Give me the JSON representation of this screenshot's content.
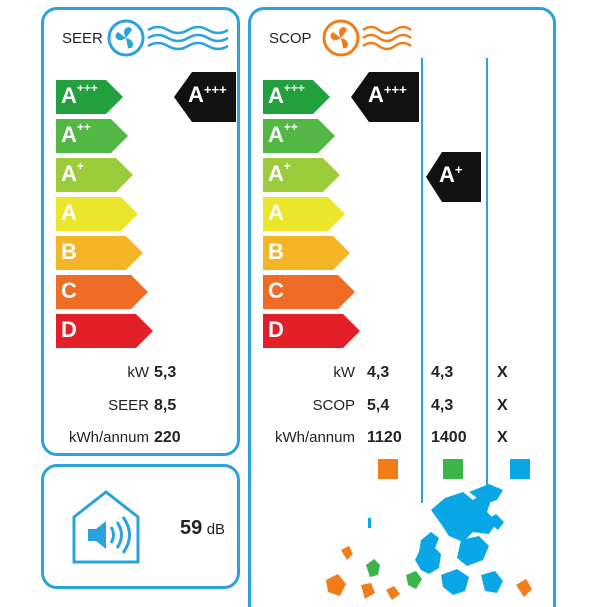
{
  "colors": {
    "border": "#2aa3dc",
    "cool": "#2aa3dc",
    "heat": "#f07d1a",
    "map_blue": "#0aa7e6",
    "map_green": "#3ab54a",
    "map_orange": "#f07d1a"
  },
  "seer": {
    "title": "SEER",
    "icon": "fan-cold-icon",
    "classes": [
      {
        "letter": "A",
        "plus": "+++",
        "color": "#21a03d"
      },
      {
        "letter": "A",
        "plus": "++",
        "color": "#53b743"
      },
      {
        "letter": "A",
        "plus": "+",
        "color": "#9ccb3b"
      },
      {
        "letter": "A",
        "plus": "",
        "color": "#ebe52b"
      },
      {
        "letter": "B",
        "plus": "",
        "color": "#f4b526"
      },
      {
        "letter": "C",
        "plus": "",
        "color": "#ee6c25"
      },
      {
        "letter": "D",
        "plus": "",
        "color": "#e32027"
      }
    ],
    "rating": {
      "letter": "A",
      "plus": "+++"
    },
    "rows": [
      {
        "label": "kW",
        "value": "5,3"
      },
      {
        "label": "SEER",
        "value": "8,5"
      },
      {
        "label": "kWh/annum",
        "value": "220"
      }
    ]
  },
  "scop": {
    "title": "SCOP",
    "icon": "fan-heat-icon",
    "ratings": [
      {
        "letter": "A",
        "plus": "+++"
      },
      {
        "letter": "A",
        "plus": "+"
      }
    ],
    "rows": [
      {
        "label": "kW",
        "values": [
          "4,3",
          "4,3",
          "X"
        ]
      },
      {
        "label": "SCOP",
        "values": [
          "5,4",
          "4,3",
          "X"
        ]
      },
      {
        "label": "kWh/annum",
        "values": [
          "1120",
          "1400",
          "X"
        ]
      }
    ],
    "zone_colors": [
      "#f07d1a",
      "#3ab54a",
      "#0aa7e6"
    ]
  },
  "noise": {
    "value": "59",
    "unit": "dB",
    "icon": "speaker-house-icon"
  }
}
